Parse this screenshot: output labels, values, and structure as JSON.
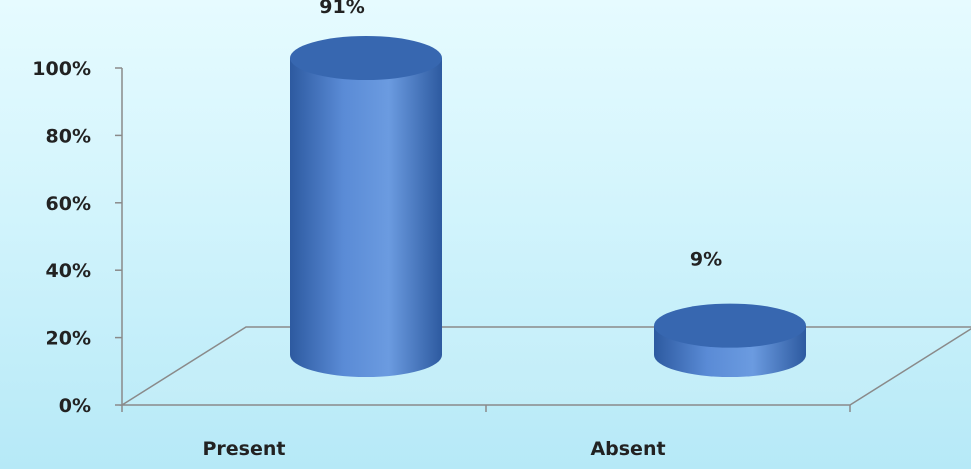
{
  "chart_data": {
    "type": "bar",
    "style": "3d-cylinder",
    "categories": [
      "Present",
      "Absent"
    ],
    "values": [
      91,
      9
    ],
    "data_labels": [
      "91%",
      "9%"
    ],
    "ylim": [
      0,
      100
    ],
    "yticks": [
      0,
      20,
      40,
      60,
      80,
      100
    ],
    "ytick_labels": [
      "0%",
      "20%",
      "40%",
      "60%",
      "80%",
      "100%"
    ],
    "title": "",
    "xlabel": "",
    "ylabel": "",
    "grid": false,
    "legend": "none",
    "colors": {
      "bar_light": "#6b9be0",
      "bar_mid": "#4a7cc8",
      "bar_dark": "#2d5aa0",
      "bar_top": "#3767b0",
      "axis": "#8a8a8a",
      "background_top": "#e6fbff",
      "background_bottom": "#b6e9f7"
    }
  }
}
